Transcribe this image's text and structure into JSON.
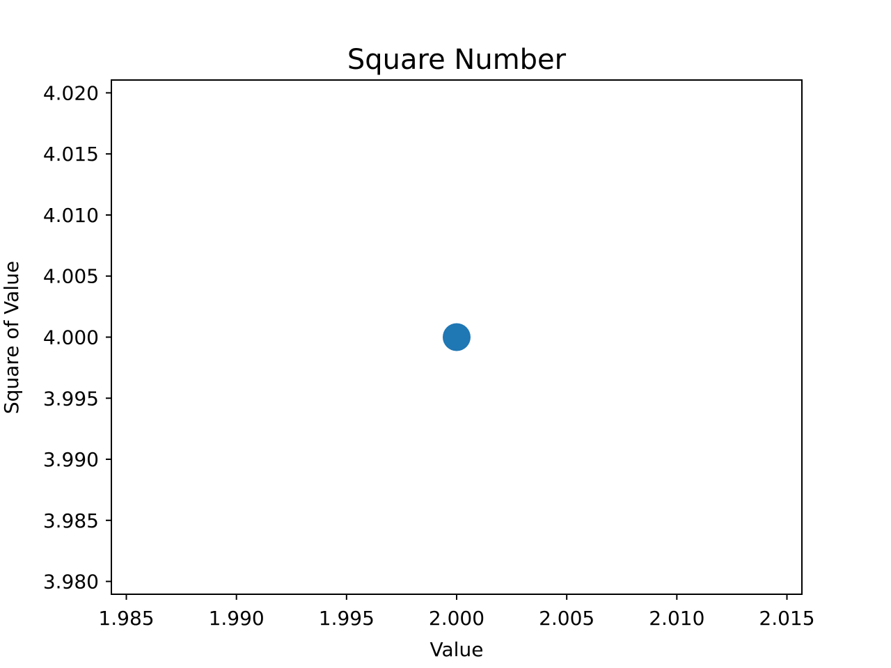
{
  "chart_data": {
    "type": "scatter",
    "title": "Square Number",
    "xlabel": "Value",
    "ylabel": "Square of Value",
    "xlim": [
      1.98432,
      2.01568
    ],
    "ylim": [
      3.97895,
      4.02105
    ],
    "x_ticks": [
      1.985,
      1.99,
      1.995,
      2.0,
      2.005,
      2.01,
      2.015
    ],
    "x_tick_labels": [
      "1.985",
      "1.990",
      "1.995",
      "2.000",
      "2.005",
      "2.010",
      "2.015"
    ],
    "y_ticks": [
      3.98,
      3.985,
      3.99,
      3.995,
      4.0,
      4.005,
      4.01,
      4.015,
      4.02
    ],
    "y_tick_labels": [
      "3.980",
      "3.985",
      "3.990",
      "3.995",
      "4.000",
      "4.005",
      "4.010",
      "4.015",
      "4.020"
    ],
    "grid": false,
    "legend": "none",
    "series": [
      {
        "x": [
          2
        ],
        "y": [
          4
        ],
        "color": "#1f77b4"
      }
    ]
  }
}
